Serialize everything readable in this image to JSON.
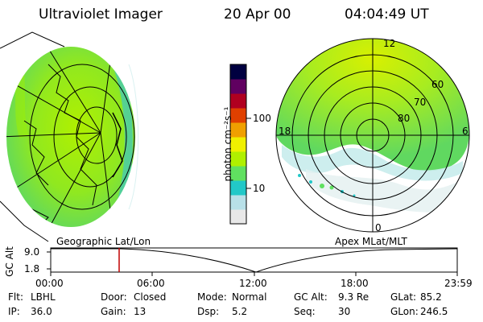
{
  "header": {
    "instrument": "Ultraviolet Imager",
    "date": "20 Apr 00",
    "time": "04:04:49 UT"
  },
  "colorbar": {
    "unit_label": "photon cm⁻²s⁻¹",
    "ticks": [
      "100",
      "10"
    ],
    "scale": "log",
    "colors": [
      "#e8e8e8",
      "#b8e0e8",
      "#22c8c8",
      "#60e060",
      "#b0f000",
      "#f0f000",
      "#f0a000",
      "#e04000",
      "#b00020",
      "#600060",
      "#000040"
    ]
  },
  "polar_plot": {
    "mlt_labels": {
      "top": "12",
      "left": "18",
      "right": "6",
      "bottom": "0"
    },
    "mlat_labels": [
      "60",
      "70",
      "80"
    ]
  },
  "timeline": {
    "left_label": "Geographic Lat/Lon",
    "right_label": "Apex MLat/MLT",
    "y_axis_label": "GC Alt",
    "y_ticks": [
      "9.0",
      "1.8"
    ],
    "x_ticks": [
      "00:00",
      "06:00",
      "12:00",
      "18:00",
      "23:59"
    ],
    "marker_time": "04:04"
  },
  "info": {
    "row1": [
      {
        "key": "Flt:",
        "value": "LBHL"
      },
      {
        "key": "Door:",
        "value": "Closed"
      },
      {
        "key": "Mode:",
        "value": "Normal"
      },
      {
        "key": "GC Alt:",
        "value": "9.3 Re"
      },
      {
        "key": "GLat:",
        "value": "85.2"
      }
    ],
    "row2": [
      {
        "key": "IP:",
        "value": "36.0"
      },
      {
        "key": "Gain:",
        "value": "13"
      },
      {
        "key": "Dsp:",
        "value": "5.2"
      },
      {
        "key": "Seq:",
        "value": "30"
      },
      {
        "key": "GLon:",
        "value": "246.5"
      }
    ]
  }
}
